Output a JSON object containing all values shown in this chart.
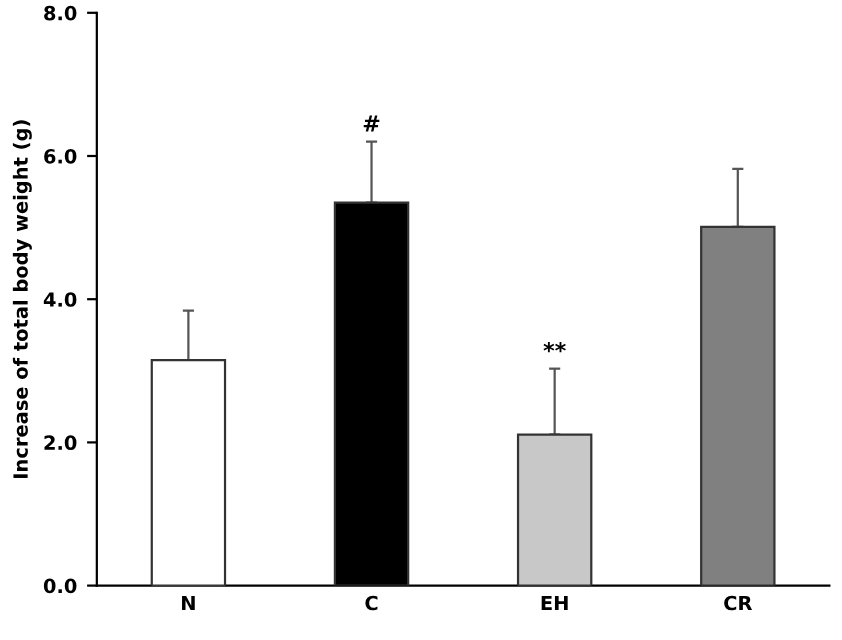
{
  "chart_data": {
    "type": "bar",
    "ylabel": "Increase of total body weight (g)",
    "categories": [
      "N",
      "C",
      "EH",
      "CR"
    ],
    "values": [
      3.15,
      5.35,
      2.11,
      5.01
    ],
    "colors": [
      "#ffffff",
      "#000000",
      "#c8c8c8",
      "#808080"
    ],
    "errors": [
      [
        3.15,
        3.84
      ],
      [
        5.35,
        6.2
      ],
      [
        2.11,
        3.03
      ],
      [
        5.01,
        5.82
      ]
    ],
    "ylim": [
      0,
      8
    ],
    "yticks": [
      {
        "value": 0,
        "label": "0.0"
      },
      {
        "value": 2,
        "label": "2.0"
      },
      {
        "value": 4,
        "label": "4.0"
      },
      {
        "value": 6,
        "label": "6.0"
      },
      {
        "value": 8,
        "label": "8.0"
      }
    ],
    "annotations": [
      {
        "text": "#",
        "x": "C",
        "y": 6.2
      },
      {
        "text": "**",
        "x": "EH",
        "y": 3.03
      }
    ],
    "grid": false,
    "legend": false
  }
}
